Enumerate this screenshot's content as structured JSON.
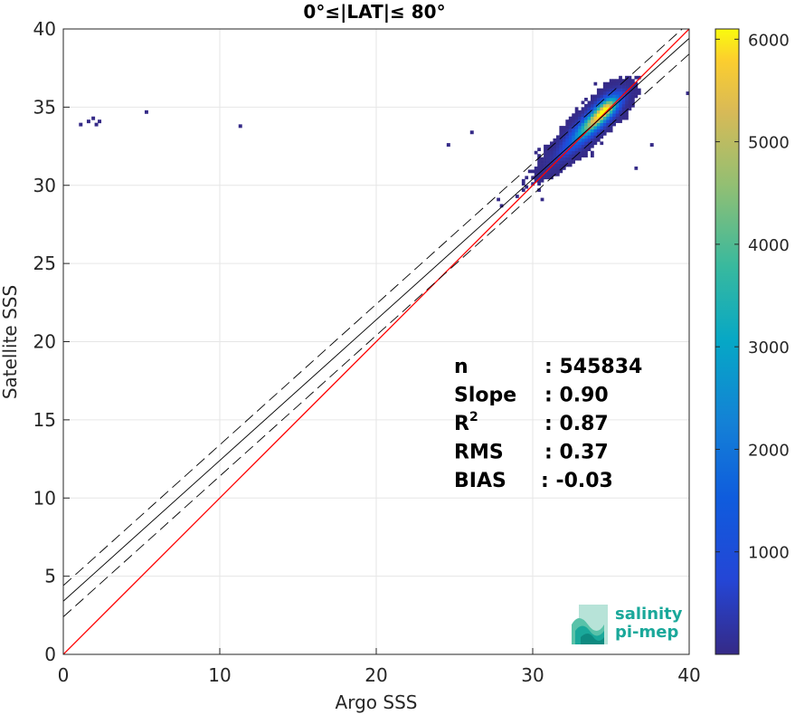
{
  "chart_data": {
    "type": "heatmap",
    "title": "0°≤|LAT|≤ 80°",
    "xlabel": "Argo SSS",
    "ylabel": "Satellite SSS",
    "xlim": [
      0,
      40
    ],
    "ylim": [
      0,
      40
    ],
    "xticks": [
      "0",
      "10",
      "20",
      "30",
      "40"
    ],
    "yticks": [
      "0",
      "5",
      "10",
      "15",
      "20",
      "25",
      "30",
      "35",
      "40"
    ],
    "grid": true,
    "colorbar": {
      "colormap": "parula",
      "range": [
        0,
        6100
      ],
      "ticks": [
        "1000",
        "2000",
        "3000",
        "4000",
        "5000",
        "6000"
      ]
    },
    "lines": [
      {
        "name": "1:1",
        "color": "#ff0000",
        "style": "solid",
        "intercept": 0,
        "slope": 1
      },
      {
        "name": "regression",
        "color": "#000000",
        "style": "solid",
        "intercept": 3.4,
        "slope": 0.9
      },
      {
        "name": "regression+",
        "color": "#000000",
        "style": "dashed",
        "intercept": 4.4,
        "slope": 0.9
      },
      {
        "name": "regression-",
        "color": "#000000",
        "style": "dashed",
        "intercept": 2.4,
        "slope": 0.9
      }
    ],
    "stats": [
      {
        "label": "n",
        "value": ": 545834"
      },
      {
        "label": "Slope",
        "value": ": 0.90"
      },
      {
        "label": "R",
        "sup": "2",
        "value": ": 0.87"
      },
      {
        "label": "RMS",
        "value": ": 0.37"
      },
      {
        "label": "BIAS",
        "value": ": -0.03"
      }
    ],
    "density_core": {
      "x": 34.5,
      "y": 34.7,
      "max_count": 6000
    },
    "outliers": [
      {
        "x": 1.0,
        "y": 33.8
      },
      {
        "x": 1.5,
        "y": 34.0
      },
      {
        "x": 1.8,
        "y": 34.2
      },
      {
        "x": 2.2,
        "y": 34.0
      },
      {
        "x": 2.0,
        "y": 33.8
      },
      {
        "x": 5.2,
        "y": 34.6
      },
      {
        "x": 11.2,
        "y": 33.7
      },
      {
        "x": 24.5,
        "y": 32.5
      },
      {
        "x": 26.0,
        "y": 33.3
      },
      {
        "x": 37.5,
        "y": 32.5
      },
      {
        "x": 39.8,
        "y": 35.8
      }
    ]
  },
  "logo": {
    "line1": "salinity",
    "line2": "pi-mep"
  }
}
